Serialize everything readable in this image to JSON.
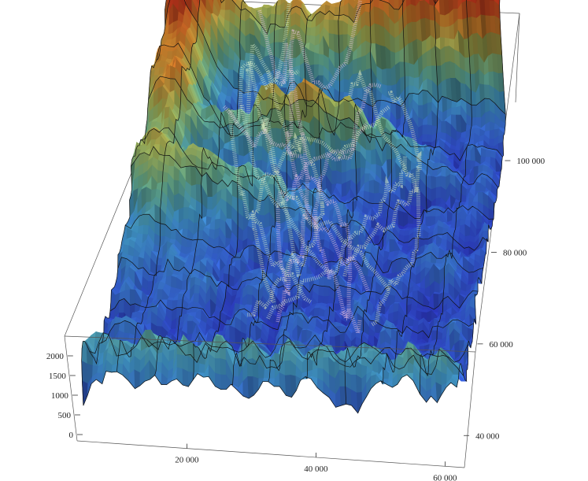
{
  "chart_data": {
    "type": "surface3d",
    "title": "",
    "xlabel": "",
    "ylabel": "",
    "zlabel": "",
    "x_ticks": [
      20000,
      40000,
      60000
    ],
    "y_ticks": [
      40000,
      60000,
      80000,
      100000
    ],
    "z_ticks": [
      0,
      500,
      1000,
      1500,
      2000
    ],
    "x_tick_labels": [
      "20 000",
      "40 000",
      "60 000"
    ],
    "y_tick_labels": [
      "40 000",
      "60 000",
      "80 000",
      "100 000"
    ],
    "z_tick_labels": [
      "0",
      "500",
      "1000",
      "1500",
      "2000"
    ],
    "xlim": [
      3000,
      63000
    ],
    "ylim": [
      33000,
      111000
    ],
    "zlim": [
      0,
      2300
    ],
    "colormap": [
      "#2a22c8",
      "#3a6ae8",
      "#49a8e0",
      "#70c0a0",
      "#b8c860",
      "#e89030",
      "#e04020"
    ],
    "overlay_tracks": {
      "count": 14,
      "colors": [
        "#e8f0c0",
        "#f0c8e8",
        "#d8f0d0"
      ]
    },
    "grid": true,
    "box": true
  }
}
